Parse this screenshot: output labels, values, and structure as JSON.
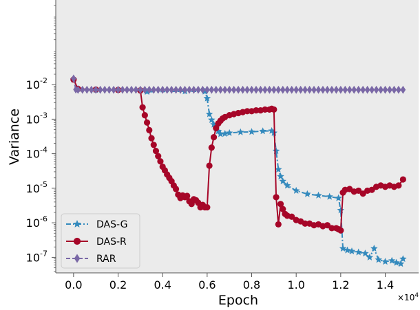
{
  "chart_data": {
    "type": "line",
    "xlabel": "Epoch",
    "ylabel": "Variance",
    "x_multiplier_label": "×10",
    "x_multiplier_exp": "4",
    "xlim": [
      -0.08,
      1.55
    ],
    "ylim_log10": [
      -7.45,
      0.45
    ],
    "y_scale": "log",
    "grid": false,
    "legend_position": "lower-left",
    "x_ticks": [
      {
        "value": 0.0,
        "label": "0.0"
      },
      {
        "value": 0.2,
        "label": "0.2"
      },
      {
        "value": 0.4,
        "label": "0.4"
      },
      {
        "value": 0.6,
        "label": "0.6"
      },
      {
        "value": 0.8,
        "label": "0.8"
      },
      {
        "value": 1.0,
        "label": "1.0"
      },
      {
        "value": 1.2,
        "label": "1.2"
      },
      {
        "value": 1.4,
        "label": "1.4"
      }
    ],
    "y_ticks": [
      {
        "exp": -2,
        "base": "10",
        "sup": "-2"
      },
      {
        "exp": -3,
        "base": "10",
        "sup": "-3"
      },
      {
        "exp": -4,
        "base": "10",
        "sup": "-4"
      },
      {
        "exp": -5,
        "base": "10",
        "sup": "-5"
      },
      {
        "exp": -6,
        "base": "10",
        "sup": "-6"
      },
      {
        "exp": -7,
        "base": "10",
        "sup": "-7"
      }
    ],
    "series": [
      {
        "name": "DAS-G",
        "color": "#348ABD",
        "marker": "star",
        "line_style": "dashdot",
        "x": [
          0.0,
          0.02,
          0.1,
          0.3,
          0.33,
          0.5,
          0.59,
          0.6,
          0.61,
          0.62,
          0.63,
          0.64,
          0.65,
          0.66,
          0.68,
          0.7,
          0.75,
          0.8,
          0.85,
          0.89,
          0.9,
          0.91,
          0.92,
          0.93,
          0.94,
          0.96,
          1.0,
          1.05,
          1.1,
          1.15,
          1.19,
          1.2,
          1.21,
          1.23,
          1.25,
          1.28,
          1.31,
          1.33,
          1.35,
          1.37,
          1.4,
          1.43,
          1.45,
          1.47,
          1.48
        ],
        "y": [
          0.014,
          0.0075,
          0.007,
          0.0068,
          0.0062,
          0.0064,
          0.0063,
          0.004,
          0.0014,
          0.00095,
          0.0007,
          0.00055,
          0.00045,
          0.00037,
          0.00038,
          0.0004,
          0.00042,
          0.00043,
          0.00045,
          0.00046,
          0.0004,
          0.00012,
          3.5e-05,
          2.2e-05,
          1.6e-05,
          1.2e-05,
          8.5e-06,
          6.8e-06,
          6.2e-06,
          5.7e-06,
          5.2e-06,
          2.3e-06,
          1.8e-07,
          1.6e-07,
          1.5e-07,
          1.4e-07,
          1.3e-07,
          1e-07,
          1.8e-07,
          8.5e-08,
          7.5e-08,
          8e-08,
          7e-08,
          6.5e-08,
          9e-08
        ]
      },
      {
        "name": "DAS-R",
        "color": "#A60628",
        "marker": "circle",
        "line_style": "solid",
        "x": [
          0.0,
          0.02,
          0.1,
          0.2,
          0.3,
          0.31,
          0.32,
          0.33,
          0.34,
          0.35,
          0.36,
          0.37,
          0.38,
          0.39,
          0.4,
          0.41,
          0.42,
          0.43,
          0.44,
          0.45,
          0.46,
          0.47,
          0.48,
          0.49,
          0.5,
          0.51,
          0.52,
          0.53,
          0.54,
          0.55,
          0.56,
          0.57,
          0.58,
          0.59,
          0.6,
          0.61,
          0.62,
          0.63,
          0.64,
          0.65,
          0.66,
          0.67,
          0.68,
          0.7,
          0.72,
          0.74,
          0.76,
          0.78,
          0.8,
          0.82,
          0.84,
          0.86,
          0.88,
          0.89,
          0.9,
          0.91,
          0.92,
          0.93,
          0.94,
          0.95,
          0.96,
          0.98,
          1.0,
          1.02,
          1.04,
          1.06,
          1.08,
          1.1,
          1.12,
          1.14,
          1.16,
          1.18,
          1.19,
          1.2,
          1.21,
          1.22,
          1.24,
          1.26,
          1.28,
          1.3,
          1.32,
          1.34,
          1.36,
          1.38,
          1.4,
          1.42,
          1.44,
          1.46,
          1.48
        ],
        "y": [
          0.014,
          0.0075,
          0.0072,
          0.007,
          0.0068,
          0.0022,
          0.0013,
          0.0008,
          0.00048,
          0.00028,
          0.00018,
          0.00012,
          8.5e-05,
          6e-05,
          4.2e-05,
          3.3e-05,
          2.5e-05,
          2e-05,
          1.6e-05,
          1.2e-05,
          9.5e-06,
          6.5e-06,
          5.2e-06,
          6.2e-06,
          5.5e-06,
          6e-06,
          4.2e-06,
          3.5e-06,
          4.8e-06,
          4.5e-06,
          3.8e-06,
          2.8e-06,
          3.3e-06,
          2.8e-06,
          2.8e-06,
          4.5e-05,
          0.00015,
          0.0003,
          0.00055,
          0.00075,
          0.0009,
          0.00105,
          0.00115,
          0.0013,
          0.0014,
          0.0015,
          0.0016,
          0.0017,
          0.0017,
          0.0018,
          0.0018,
          0.0019,
          0.0019,
          0.002,
          0.0019,
          5.5e-06,
          9e-07,
          3.5e-06,
          2.5e-06,
          1.8e-06,
          1.6e-06,
          1.5e-06,
          1.2e-06,
          1.1e-06,
          9.5e-07,
          9.5e-07,
          8.5e-07,
          9e-07,
          8e-07,
          8.5e-07,
          7e-07,
          7e-07,
          6.5e-07,
          6e-07,
          7.5e-06,
          9e-06,
          9.5e-06,
          8e-06,
          8.5e-06,
          7e-06,
          8.5e-06,
          9e-06,
          1.1e-05,
          1.2e-05,
          1.1e-05,
          1.2e-05,
          1.1e-05,
          1.2e-05,
          1.8e-05
        ]
      },
      {
        "name": "RAR",
        "color": "#7A68A6",
        "marker": "diamond",
        "line_style": "dashed",
        "x": [
          0.0,
          0.01,
          0.02,
          0.04,
          0.06,
          0.08,
          0.1,
          0.12,
          0.14,
          0.16,
          0.18,
          0.2,
          0.22,
          0.24,
          0.26,
          0.28,
          0.3,
          0.32,
          0.34,
          0.36,
          0.38,
          0.4,
          0.42,
          0.44,
          0.46,
          0.48,
          0.5,
          0.52,
          0.54,
          0.56,
          0.58,
          0.6,
          0.62,
          0.64,
          0.66,
          0.68,
          0.7,
          0.72,
          0.74,
          0.76,
          0.78,
          0.8,
          0.82,
          0.84,
          0.86,
          0.88,
          0.9,
          0.92,
          0.94,
          0.96,
          0.98,
          1.0,
          1.02,
          1.04,
          1.06,
          1.08,
          1.1,
          1.12,
          1.14,
          1.16,
          1.18,
          1.2,
          1.22,
          1.24,
          1.26,
          1.28,
          1.3,
          1.32,
          1.34,
          1.36,
          1.38,
          1.4,
          1.42,
          1.44,
          1.46,
          1.48
        ],
        "y": [
          0.015,
          0.0072,
          0.0071,
          0.0071,
          0.0071,
          0.0071,
          0.0071,
          0.0071,
          0.0071,
          0.0071,
          0.0071,
          0.0071,
          0.0071,
          0.0071,
          0.0071,
          0.0071,
          0.0071,
          0.0071,
          0.0071,
          0.0071,
          0.0071,
          0.0071,
          0.0071,
          0.0071,
          0.0071,
          0.0071,
          0.0071,
          0.0071,
          0.0071,
          0.0071,
          0.0071,
          0.0071,
          0.0071,
          0.0071,
          0.0071,
          0.0071,
          0.0071,
          0.0071,
          0.0071,
          0.0071,
          0.0071,
          0.0071,
          0.0071,
          0.0071,
          0.0071,
          0.0071,
          0.0071,
          0.0071,
          0.0071,
          0.0071,
          0.0071,
          0.0071,
          0.0071,
          0.0071,
          0.0071,
          0.0071,
          0.0071,
          0.0071,
          0.0071,
          0.0071,
          0.0071,
          0.0071,
          0.0071,
          0.0071,
          0.0071,
          0.0071,
          0.0071,
          0.0071,
          0.0071,
          0.0071,
          0.0071,
          0.0071,
          0.0071,
          0.0071,
          0.0071,
          0.0071
        ]
      }
    ]
  },
  "colors": {
    "plot_background": "#EBEBEB",
    "das_g": "#348ABD",
    "das_r": "#A60628",
    "rar": "#7A68A6"
  }
}
